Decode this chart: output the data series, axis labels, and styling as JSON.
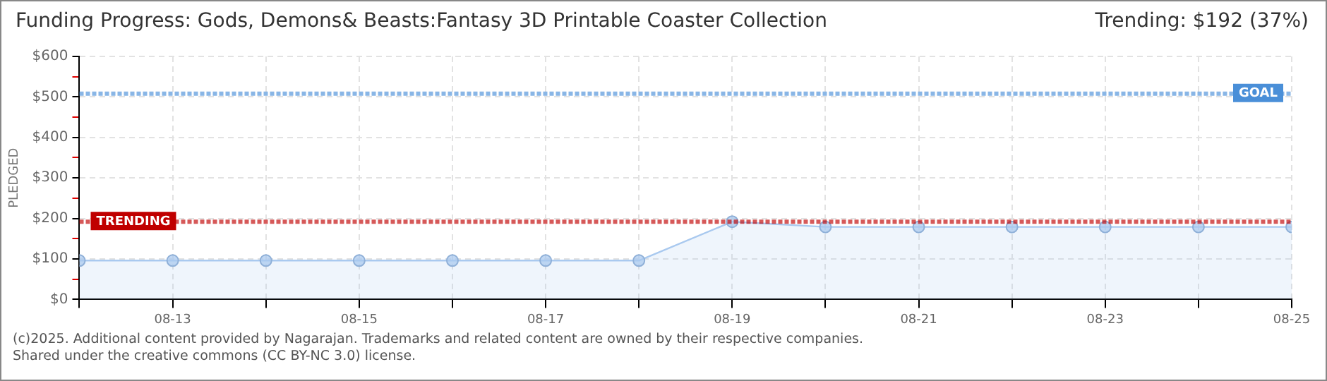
{
  "chart_data": {
    "type": "area",
    "title": "Funding Progress: Gods, Demons& Beasts:Fantasy 3D Printable Coaster Collection",
    "subtitle": "Trending:  $192 (37%)",
    "ylabel": "PLEDGED",
    "x": [
      "--08-12",
      "--08-13",
      "--08-14",
      "--08-15",
      "--08-16",
      "--08-17",
      "--08-18",
      "--08-19",
      "--08-20",
      "--08-21",
      "--08-22",
      "--08-23",
      "--08-24",
      "--08-25"
    ],
    "series": [
      {
        "color": "#a9c9ef",
        "values": [
          96,
          96,
          96,
          96,
          96,
          96,
          96,
          192,
          179,
          179,
          179,
          179,
          179,
          179
        ]
      }
    ],
    "xlim": [
      "--08-12",
      "--08-25"
    ],
    "xticks": [
      {
        "value": "--08-12",
        "label": null
      },
      {
        "value": "--08-13",
        "label": "08-13"
      },
      {
        "value": "--08-14",
        "label": null
      },
      {
        "value": "--08-15",
        "label": "08-15"
      },
      {
        "value": "--08-16",
        "label": null
      },
      {
        "value": "--08-17",
        "label": "08-17"
      },
      {
        "value": "--08-18",
        "label": null
      },
      {
        "value": "--08-19",
        "label": "08-19"
      },
      {
        "value": "--08-20",
        "label": null
      },
      {
        "value": "--08-21",
        "label": "08-21"
      },
      {
        "value": "--08-22",
        "label": null
      },
      {
        "value": "--08-23",
        "label": "08-23"
      },
      {
        "value": "--08-24",
        "label": null
      },
      {
        "value": "--08-25",
        "label": "08-25"
      }
    ],
    "ylim": [
      0,
      600
    ],
    "yticks": [
      {
        "value": 0,
        "label": "$0"
      },
      {
        "value": 50,
        "label": null
      },
      {
        "value": 100,
        "label": "$100"
      },
      {
        "value": 150,
        "label": null
      },
      {
        "value": 200,
        "label": "$200"
      },
      {
        "value": 250,
        "label": null
      },
      {
        "value": 300,
        "label": "$300"
      },
      {
        "value": 350,
        "label": null
      },
      {
        "value": 400,
        "label": "$400"
      },
      {
        "value": 450,
        "label": null
      },
      {
        "value": 500,
        "label": "$500"
      },
      {
        "value": 550,
        "label": null
      },
      {
        "value": 600,
        "label": "$600"
      }
    ],
    "ref_lines": [
      {
        "axis": "y",
        "value": 508,
        "label": "GOAL",
        "color": "#4a8fd8",
        "line_style": "dotted"
      },
      {
        "axis": "y",
        "value": 192,
        "label": "TRENDING",
        "color": "#c00000",
        "line_style": "dotted"
      }
    ],
    "grid": true,
    "marker": "circle",
    "legend": false,
    "annotations": [
      "(c)2025. Additional content provided by Nagarajan. Trademarks and related content are owned by their respective companies.",
      "Shared under the creative commons (CC BY-NC 3.0) license."
    ]
  }
}
